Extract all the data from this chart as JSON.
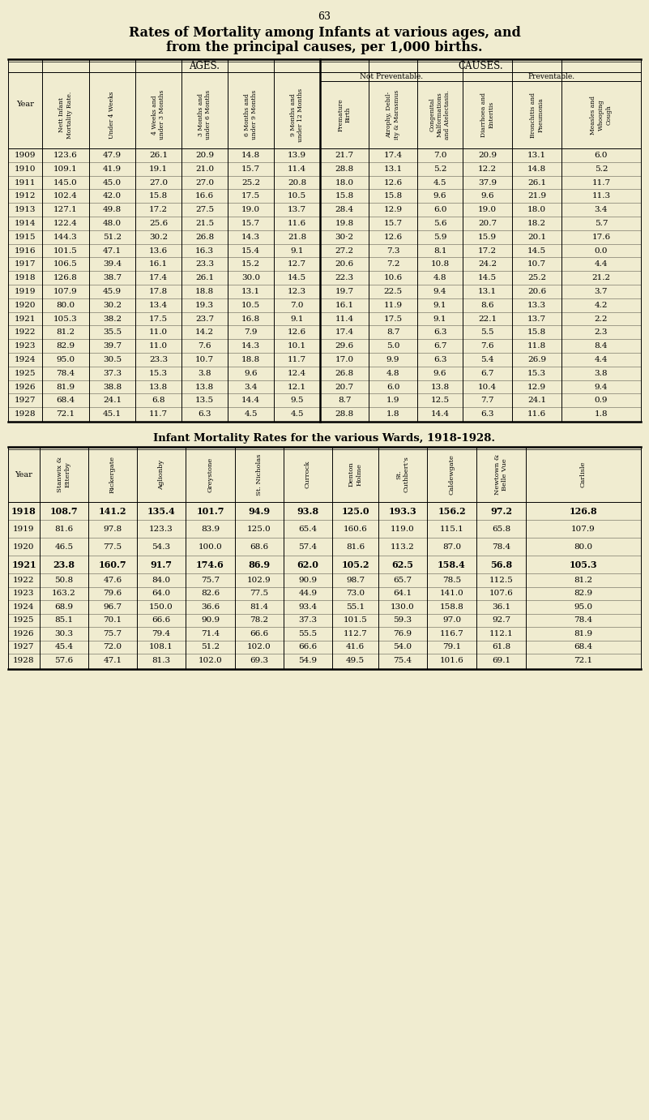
{
  "page_number": "63",
  "title1": "Rates of Mortality among Infants at various ages, and",
  "title2": "from the principal causes, per 1,000 births.",
  "bg_color": "#f0ecd0",
  "table1": {
    "rows": [
      [
        "1909",
        "123.6",
        "47.9",
        "26.1",
        "20.9",
        "14.8",
        "13.9",
        "21.7",
        "17.4",
        "7.0",
        "20.9",
        "13.1",
        "6.0"
      ],
      [
        "1910",
        "109.1",
        "41.9",
        "19.1",
        "21.0",
        "15.7",
        "11.4",
        "28.8",
        "13.1",
        "5.2",
        "12.2",
        "14.8",
        "5.2"
      ],
      [
        "1911",
        "145.0",
        "45.0",
        "27.0",
        "27.0",
        "25.2",
        "20.8",
        "18.0",
        "12.6",
        "4.5",
        "37.9",
        "26.1",
        "11.7"
      ],
      [
        "1912",
        "102.4",
        "42.0",
        "15.8",
        "16.6",
        "17.5",
        "10.5",
        "15.8",
        "15.8",
        "9.6",
        "9.6",
        "21.9",
        "11.3"
      ],
      [
        "1913",
        "127.1",
        "49.8",
        "17.2",
        "27.5",
        "19.0",
        "13.7",
        "28.4",
        "12.9",
        "6.0",
        "19.0",
        "18.0",
        "3.4"
      ],
      [
        "1914",
        "122.4",
        "48.0",
        "25.6",
        "21.5",
        "15.7",
        "11.6",
        "19.8",
        "15.7",
        "5.6",
        "20.7",
        "18.2",
        "5.7"
      ],
      [
        "1915",
        "144.3",
        "51.2",
        "30.2",
        "26.8",
        "14.3",
        "21.8",
        "30·2",
        "12.6",
        "5.9",
        "15.9",
        "20.1",
        "17.6"
      ],
      [
        "1916",
        "101.5",
        "47.1",
        "13.6",
        "16.3",
        "15.4",
        "9.1",
        "27.2",
        "7.3",
        "8.1",
        "17.2",
        "14.5",
        "0.0"
      ],
      [
        "1917",
        "106.5",
        "39.4",
        "16.1",
        "23.3",
        "15.2",
        "12.7",
        "20.6",
        "7.2",
        "10.8",
        "24.2",
        "10.7",
        "4.4"
      ],
      [
        "1918",
        "126.8",
        "38.7",
        "17.4",
        "26.1",
        "30.0",
        "14.5",
        "22.3",
        "10.6",
        "4.8",
        "14.5",
        "25.2",
        "21.2"
      ],
      [
        "1919",
        "107.9",
        "45.9",
        "17.8",
        "18.8",
        "13.1",
        "12.3",
        "19.7",
        "22.5",
        "9.4",
        "13.1",
        "20.6",
        "3.7"
      ],
      [
        "1920",
        "80.0",
        "30.2",
        "13.4",
        "19.3",
        "10.5",
        "7.0",
        "16.1",
        "11.9",
        "9.1",
        "8.6",
        "13.3",
        "4.2"
      ],
      [
        "1921",
        "105.3",
        "38.2",
        "17.5",
        "23.7",
        "16.8",
        "9.1",
        "11.4",
        "17.5",
        "9.1",
        "22.1",
        "13.7",
        "2.2"
      ],
      [
        "1922",
        "81.2",
        "35.5",
        "11.0",
        "14.2",
        "7.9",
        "12.6",
        "17.4",
        "8.7",
        "6.3",
        "5.5",
        "15.8",
        "2.3"
      ],
      [
        "1923",
        "82.9",
        "39.7",
        "11.0",
        "7.6",
        "14.3",
        "10.1",
        "29.6",
        "5.0",
        "6.7",
        "7.6",
        "11.8",
        "8.4"
      ],
      [
        "1924",
        "95.0",
        "30.5",
        "23.3",
        "10.7",
        "18.8",
        "11.7",
        "17.0",
        "9.9",
        "6.3",
        "5.4",
        "26.9",
        "4.4"
      ],
      [
        "1925",
        "78.4",
        "37.3",
        "15.3",
        "3.8",
        "9.6",
        "12.4",
        "26.8",
        "4.8",
        "9.6",
        "6.7",
        "15.3",
        "3.8"
      ],
      [
        "1926",
        "81.9",
        "38.8",
        "13.8",
        "13.8",
        "3.4",
        "12.1",
        "20.7",
        "6.0",
        "13.8",
        "10.4",
        "12.9",
        "9.4"
      ],
      [
        "1927",
        "68.4",
        "24.1",
        "6.8",
        "13.5",
        "14.4",
        "9.5",
        "8.7",
        "1.9",
        "12.5",
        "7.7",
        "24.1",
        "0.9"
      ],
      [
        "1928",
        "72.1",
        "45.1",
        "11.7",
        "6.3",
        "4.5",
        "4.5",
        "28.8",
        "1.8",
        "14.4",
        "6.3",
        "11.6",
        "1.8"
      ]
    ]
  },
  "table2": {
    "title": "Infant Mortality Rates for the various Wards, 1918-1928.",
    "bold_years": [
      "1918",
      "1921"
    ],
    "rows": [
      [
        "1918",
        "108.7",
        "141.2",
        "135.4",
        "101.7",
        "94.9",
        "93.8",
        "125.0",
        "193.3",
        "156.2",
        "97.2",
        "126.8"
      ],
      [
        "1919",
        "81.6",
        "97.8",
        "123.3",
        "83.9",
        "125.0",
        "65.4",
        "160.6",
        "119.0",
        "115.1",
        "65.8",
        "107.9"
      ],
      [
        "1920",
        "46.5",
        "77.5",
        "54.3",
        "100.0",
        "68.6",
        "57.4",
        "81.6",
        "113.2",
        "87.0",
        "78.4",
        "80.0"
      ],
      [
        "1921",
        "23.8",
        "160.7",
        "91.7",
        "174.6",
        "86.9",
        "62.0",
        "105.2",
        "62.5",
        "158.4",
        "56.8",
        "105.3"
      ],
      [
        "1922",
        "50.8",
        "47.6",
        "84.0",
        "75.7",
        "102.9",
        "90.9",
        "98.7",
        "65.7",
        "78.5",
        "112.5",
        "81.2"
      ],
      [
        "1923",
        "163.2",
        "79.6",
        "64.0",
        "82.6",
        "77.5",
        "44.9",
        "73.0",
        "64.1",
        "141.0",
        "107.6",
        "82.9"
      ],
      [
        "1924",
        "68.9",
        "96.7",
        "150.0",
        "36.6",
        "81.4",
        "93.4",
        "55.1",
        "130.0",
        "158.8",
        "36.1",
        "95.0"
      ],
      [
        "1925",
        "85.1",
        "70.1",
        "66.6",
        "90.9",
        "78.2",
        "37.3",
        "101.5",
        "59.3",
        "97.0",
        "92.7",
        "78.4"
      ],
      [
        "1926",
        "30.3",
        "75.7",
        "79.4",
        "71.4",
        "66.6",
        "55.5",
        "112.7",
        "76.9",
        "116.7",
        "112.1",
        "81.9"
      ],
      [
        "1927",
        "45.4",
        "72.0",
        "108.1",
        "51.2",
        "102.0",
        "66.6",
        "41.6",
        "54.0",
        "79.1",
        "61.8",
        "68.4"
      ],
      [
        "1928",
        "57.6",
        "47.1",
        "81.3",
        "102.0",
        "69.3",
        "54.9",
        "49.5",
        "75.4",
        "101.6",
        "69.1",
        "72.1"
      ]
    ]
  }
}
